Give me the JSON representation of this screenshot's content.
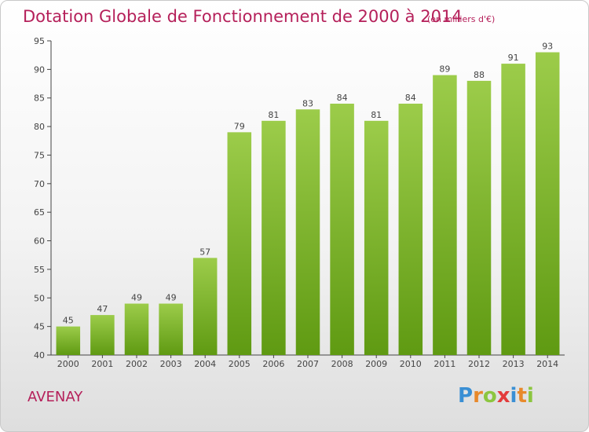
{
  "chart_data": {
    "type": "bar",
    "title": "Dotation Globale de Fonctionnement de 2000 à 2014",
    "subtitle": "(en milliers d'€)",
    "categories": [
      "2000",
      "2001",
      "2002",
      "2003",
      "2004",
      "2005",
      "2006",
      "2007",
      "2008",
      "2009",
      "2010",
      "2011",
      "2012",
      "2013",
      "2014"
    ],
    "values": [
      45,
      47,
      49,
      49,
      57,
      79,
      81,
      83,
      84,
      81,
      84,
      89,
      88,
      91,
      93
    ],
    "value_labels": [
      "45",
      "47",
      "49",
      "49",
      "57",
      "79",
      "81",
      "83",
      "84",
      "81",
      "84",
      "89",
      "88",
      "91",
      "93"
    ],
    "xlabel": "",
    "ylabel": "",
    "ylim": [
      40,
      95
    ],
    "yticks": [
      40,
      45,
      50,
      55,
      60,
      65,
      70,
      75,
      80,
      85,
      90,
      95
    ],
    "ytick_labels": [
      "40",
      "45",
      "50",
      "55",
      "60",
      "65",
      "70",
      "75",
      "80",
      "85",
      "90",
      "95"
    ],
    "grid": false,
    "legend": "none",
    "bar_color_top": "#9ccc4a",
    "bar_color_bottom": "#5f9a12"
  },
  "footer": {
    "commune": "AVENAY",
    "logo_letters": [
      {
        "ch": "P",
        "color": "#3a8fd4"
      },
      {
        "ch": "r",
        "color": "#e8892b"
      },
      {
        "ch": "o",
        "color": "#8cc63f"
      },
      {
        "ch": "x",
        "color": "#e33b3b"
      },
      {
        "ch": "i",
        "color": "#3a8fd4"
      },
      {
        "ch": "t",
        "color": "#e8892b"
      },
      {
        "ch": "i",
        "color": "#8cc63f"
      }
    ]
  }
}
